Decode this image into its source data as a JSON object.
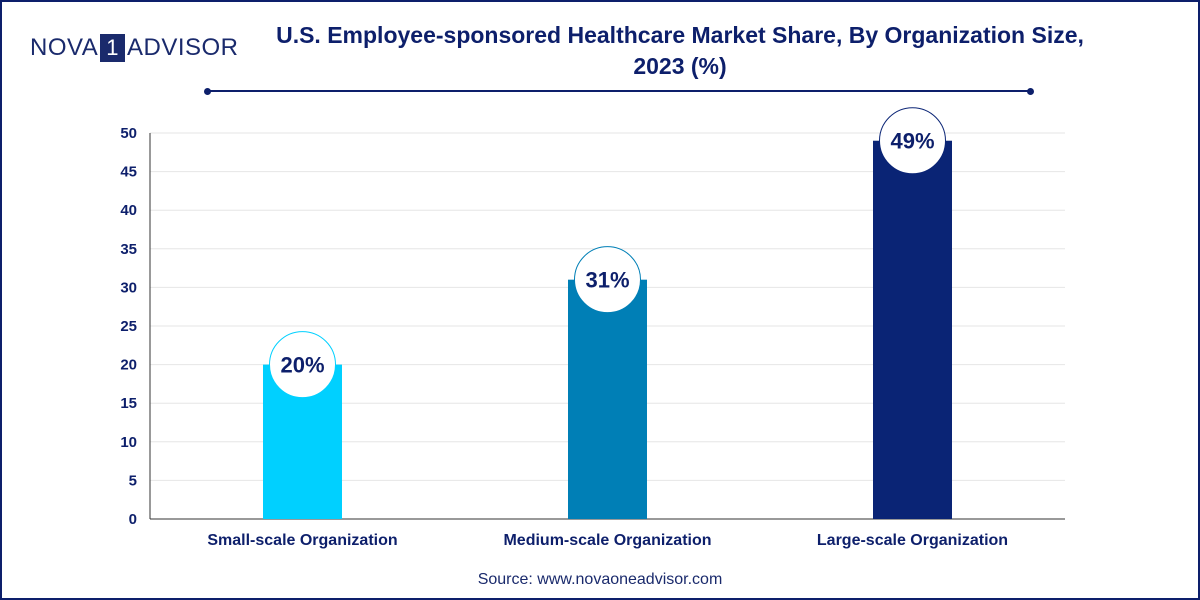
{
  "brand": {
    "name_left": "NOVA",
    "name_num": "1",
    "name_right": "ADVISOR"
  },
  "title_line1": "U.S. Employee-sponsored Healthcare Market Share, By Organization Size,",
  "title_line2": "2023 (%)",
  "source": "Source: www.novaoneadvisor.com",
  "colors": {
    "small": "#00d0ff",
    "medium": "#007fb6",
    "large": "#0a2475",
    "text": "#0d1f6b",
    "grid": "#e6e6e6"
  },
  "chart_data": {
    "type": "bar",
    "categories": [
      "Small-scale Organization",
      "Medium-scale Organization",
      "Large-scale Organization"
    ],
    "values": [
      20,
      31,
      49
    ],
    "labels": [
      "20%",
      "31%",
      "49%"
    ],
    "ylim": [
      0,
      50
    ],
    "yticks": [
      "0",
      "5",
      "10",
      "15",
      "20",
      "25",
      "30",
      "35",
      "40",
      "45",
      "50"
    ],
    "grid": true,
    "legend": "none"
  }
}
